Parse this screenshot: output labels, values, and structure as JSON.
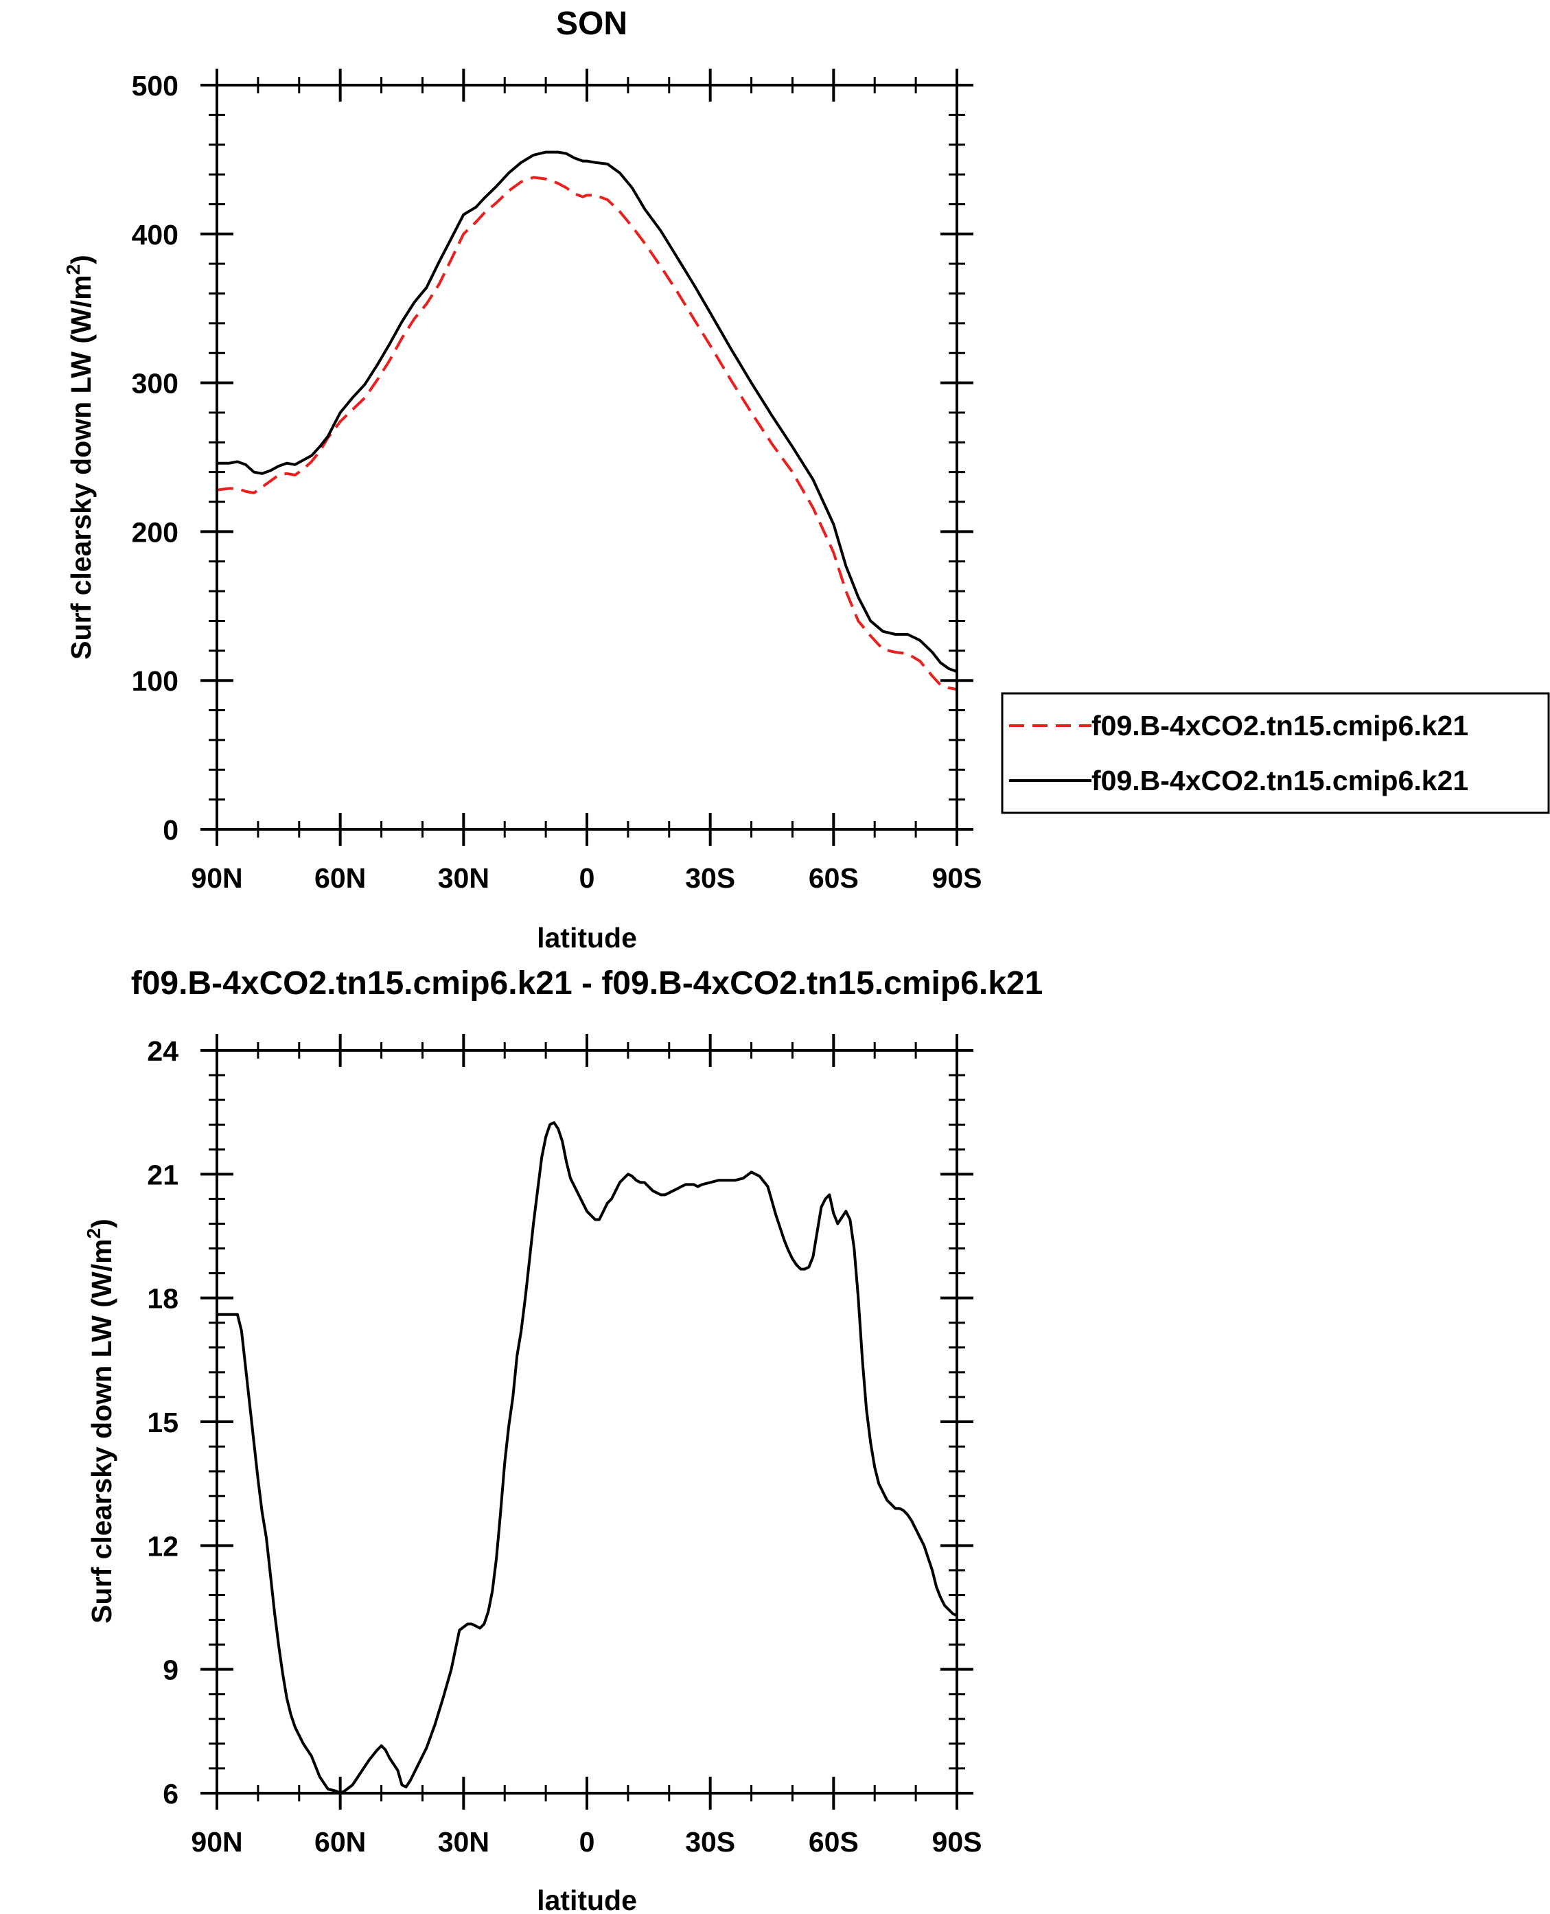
{
  "figure": {
    "top_title": "SON",
    "bottom_title": "f09.B-4xCO2.tn15.cmip6.k21 - f09.B-4xCO2.tn15.cmip6.k21",
    "legend": [
      {
        "label": "f09.B-4xCO2.tn15.cmip6.k21",
        "color": "#e8201e",
        "dash": "dashed"
      },
      {
        "label": "f09.B-4xCO2.tn15.cmip6.k21",
        "color": "#000000",
        "dash": "solid"
      }
    ]
  },
  "chart_data": [
    {
      "type": "line",
      "title": "SON",
      "xlabel": "latitude",
      "ylabel_main": "Surf clearsky down LW (W/m",
      "ylabel_sup": "2",
      "ylabel_close": ")",
      "xlim": [
        90,
        -90
      ],
      "ylim": [
        0,
        500
      ],
      "xticks": [
        90,
        60,
        30,
        0,
        -30,
        -60,
        -90
      ],
      "xtick_labels": [
        "90N",
        "60N",
        "30N",
        "0",
        "30S",
        "60S",
        "90S"
      ],
      "yticks": [
        0,
        100,
        200,
        300,
        400,
        500
      ],
      "ytick_labels": [
        "0",
        "100",
        "200",
        "300",
        "400",
        "500"
      ],
      "series": [
        {
          "name": "f09.B-4xCO2.tn15.cmip6.k21",
          "color": "#e8201e",
          "dash": "dashed",
          "x": [
            90,
            87,
            85,
            83,
            81,
            79,
            77,
            75,
            73,
            71,
            69,
            67,
            65,
            63,
            60,
            57,
            54,
            51,
            48,
            45,
            42,
            39,
            36,
            33,
            30,
            27,
            25,
            22,
            19,
            16,
            13,
            10,
            7,
            5,
            3,
            1,
            0,
            -2,
            -5,
            -8,
            -11,
            -14,
            -18,
            -22,
            -26,
            -30,
            -35,
            -40,
            -45,
            -50,
            -55,
            -60,
            -63,
            -66,
            -69,
            -72,
            -75,
            -78,
            -81,
            -84,
            -86,
            -88,
            -90
          ],
          "y": [
            228,
            229,
            229,
            227,
            226,
            230,
            234,
            238,
            239,
            238,
            242,
            247,
            254,
            263,
            274,
            282,
            290,
            302,
            315,
            330,
            343,
            353,
            366,
            383,
            400,
            408,
            414,
            421,
            429,
            435,
            438,
            437,
            434,
            431,
            427,
            425,
            426,
            426,
            423,
            415,
            405,
            394,
            378,
            361,
            343,
            325,
            302,
            280,
            259,
            240,
            216,
            186,
            160,
            140,
            130,
            121,
            119,
            118,
            113,
            103,
            97,
            95,
            94
          ]
        },
        {
          "name": "f09.B-4xCO2.tn15.cmip6.k21",
          "color": "#000000",
          "dash": "solid",
          "x": [
            90,
            87,
            85,
            83,
            81,
            79,
            77,
            75,
            73,
            71,
            69,
            67,
            65,
            63,
            60,
            57,
            54,
            51,
            48,
            45,
            42,
            39,
            36,
            33,
            30,
            27,
            25,
            22,
            19,
            16,
            13,
            10,
            7,
            5,
            3,
            1,
            0,
            -2,
            -5,
            -8,
            -11,
            -14,
            -18,
            -22,
            -26,
            -30,
            -35,
            -40,
            -45,
            -50,
            -55,
            -60,
            -63,
            -66,
            -69,
            -72,
            -75,
            -78,
            -81,
            -84,
            -86,
            -88,
            -90
          ],
          "y": [
            246,
            246,
            247,
            245,
            240,
            239,
            241,
            244,
            246,
            245,
            248,
            251,
            257,
            264,
            280,
            290,
            299,
            312,
            326,
            341,
            354,
            364,
            381,
            397,
            413,
            418,
            424,
            432,
            441,
            448,
            453,
            455,
            455,
            454,
            451,
            449,
            449,
            448,
            447,
            441,
            431,
            417,
            402,
            384,
            366,
            347,
            323,
            300,
            278,
            257,
            235,
            205,
            177,
            156,
            140,
            133,
            131,
            131,
            127,
            119,
            112,
            108,
            106
          ]
        }
      ]
    },
    {
      "type": "line",
      "title": "f09.B-4xCO2.tn15.cmip6.k21 - f09.B-4xCO2.tn15.cmip6.k21",
      "xlabel": "latitude",
      "ylabel_main": "Surf clearsky down LW (W/m",
      "ylabel_sup": "2",
      "ylabel_close": ")",
      "xlim": [
        90,
        -90
      ],
      "ylim": [
        6,
        24
      ],
      "xticks": [
        90,
        60,
        30,
        0,
        -30,
        -60,
        -90
      ],
      "xtick_labels": [
        "90N",
        "60N",
        "30N",
        "0",
        "30S",
        "60S",
        "90S"
      ],
      "yticks": [
        6,
        9,
        12,
        15,
        18,
        21,
        24
      ],
      "ytick_labels": [
        "6",
        "9",
        "12",
        "15",
        "18",
        "21",
        "24"
      ],
      "series": [
        {
          "color": "#000000",
          "dash": "solid",
          "x": [
            90,
            88,
            86,
            85,
            84,
            83,
            82,
            81,
            80,
            79,
            78,
            77,
            76,
            75,
            74,
            73,
            72,
            71,
            70,
            69,
            67,
            65,
            63,
            61,
            60,
            59,
            57,
            55,
            53,
            51,
            50,
            49,
            48,
            46,
            45,
            44,
            43,
            41,
            39,
            37,
            35,
            33,
            31,
            29,
            28,
            27,
            26,
            25,
            24,
            23,
            22,
            21,
            20,
            19,
            18,
            17,
            16,
            15,
            14,
            13,
            12,
            11,
            10,
            9,
            8,
            7,
            6,
            5,
            4,
            3,
            2,
            1,
            0,
            -1,
            -2,
            -3,
            -4,
            -5,
            -6,
            -7,
            -8,
            -9,
            -10,
            -11,
            -12,
            -13,
            -14,
            -15,
            -16,
            -17,
            -18,
            -19,
            -20,
            -21,
            -22,
            -23,
            -24,
            -25,
            -26,
            -27,
            -28,
            -30,
            -32,
            -34,
            -36,
            -38,
            -40,
            -42,
            -44,
            -45,
            -46,
            -47,
            -48,
            -49,
            -50,
            -51,
            -52,
            -53,
            -54,
            -55,
            -56,
            -57,
            -58,
            -59,
            -60,
            -61,
            -62,
            -63,
            -64,
            -65,
            -66,
            -67,
            -68,
            -69,
            -70,
            -71,
            -72,
            -73,
            -74,
            -75,
            -76,
            -77,
            -78,
            -79,
            -80,
            -81,
            -82,
            -83,
            -84,
            -85,
            -86,
            -87,
            -88,
            -89,
            -90
          ],
          "y": [
            17.6,
            17.6,
            17.6,
            17.6,
            17.2,
            16.3,
            15.4,
            14.5,
            13.6,
            12.8,
            12.2,
            11.3,
            10.4,
            9.6,
            8.9,
            8.3,
            7.9,
            7.6,
            7.4,
            7.2,
            6.9,
            6.4,
            6.1,
            6.05,
            6.0,
            6.05,
            6.2,
            6.5,
            6.8,
            7.05,
            7.15,
            7.05,
            6.85,
            6.55,
            6.2,
            6.15,
            6.3,
            6.7,
            7.1,
            7.65,
            8.3,
            9.0,
            9.95,
            10.1,
            10.1,
            10.05,
            10.0,
            10.1,
            10.4,
            10.9,
            11.7,
            12.8,
            14.0,
            14.9,
            15.6,
            16.6,
            17.2,
            18.0,
            18.9,
            19.8,
            20.6,
            21.4,
            21.9,
            22.2,
            22.25,
            22.1,
            21.8,
            21.3,
            20.9,
            20.7,
            20.5,
            20.3,
            20.1,
            20.0,
            19.9,
            19.9,
            20.1,
            20.3,
            20.4,
            20.6,
            20.8,
            20.9,
            21.0,
            20.95,
            20.85,
            20.8,
            20.8,
            20.7,
            20.6,
            20.55,
            20.5,
            20.5,
            20.55,
            20.6,
            20.65,
            20.7,
            20.75,
            20.75,
            20.75,
            20.7,
            20.75,
            20.8,
            20.85,
            20.85,
            20.85,
            20.9,
            21.05,
            20.95,
            20.7,
            20.35,
            20.0,
            19.7,
            19.4,
            19.15,
            18.95,
            18.8,
            18.7,
            18.7,
            18.75,
            19.0,
            19.6,
            20.2,
            20.4,
            20.5,
            20.05,
            19.8,
            19.95,
            20.1,
            19.9,
            19.2,
            18.0,
            16.5,
            15.3,
            14.5,
            13.9,
            13.5,
            13.3,
            13.1,
            13.0,
            12.9,
            12.9,
            12.85,
            12.75,
            12.6,
            12.4,
            12.2,
            12.0,
            11.7,
            11.4,
            11.0,
            10.75,
            10.55,
            10.45,
            10.35,
            10.3
          ]
        }
      ]
    }
  ]
}
